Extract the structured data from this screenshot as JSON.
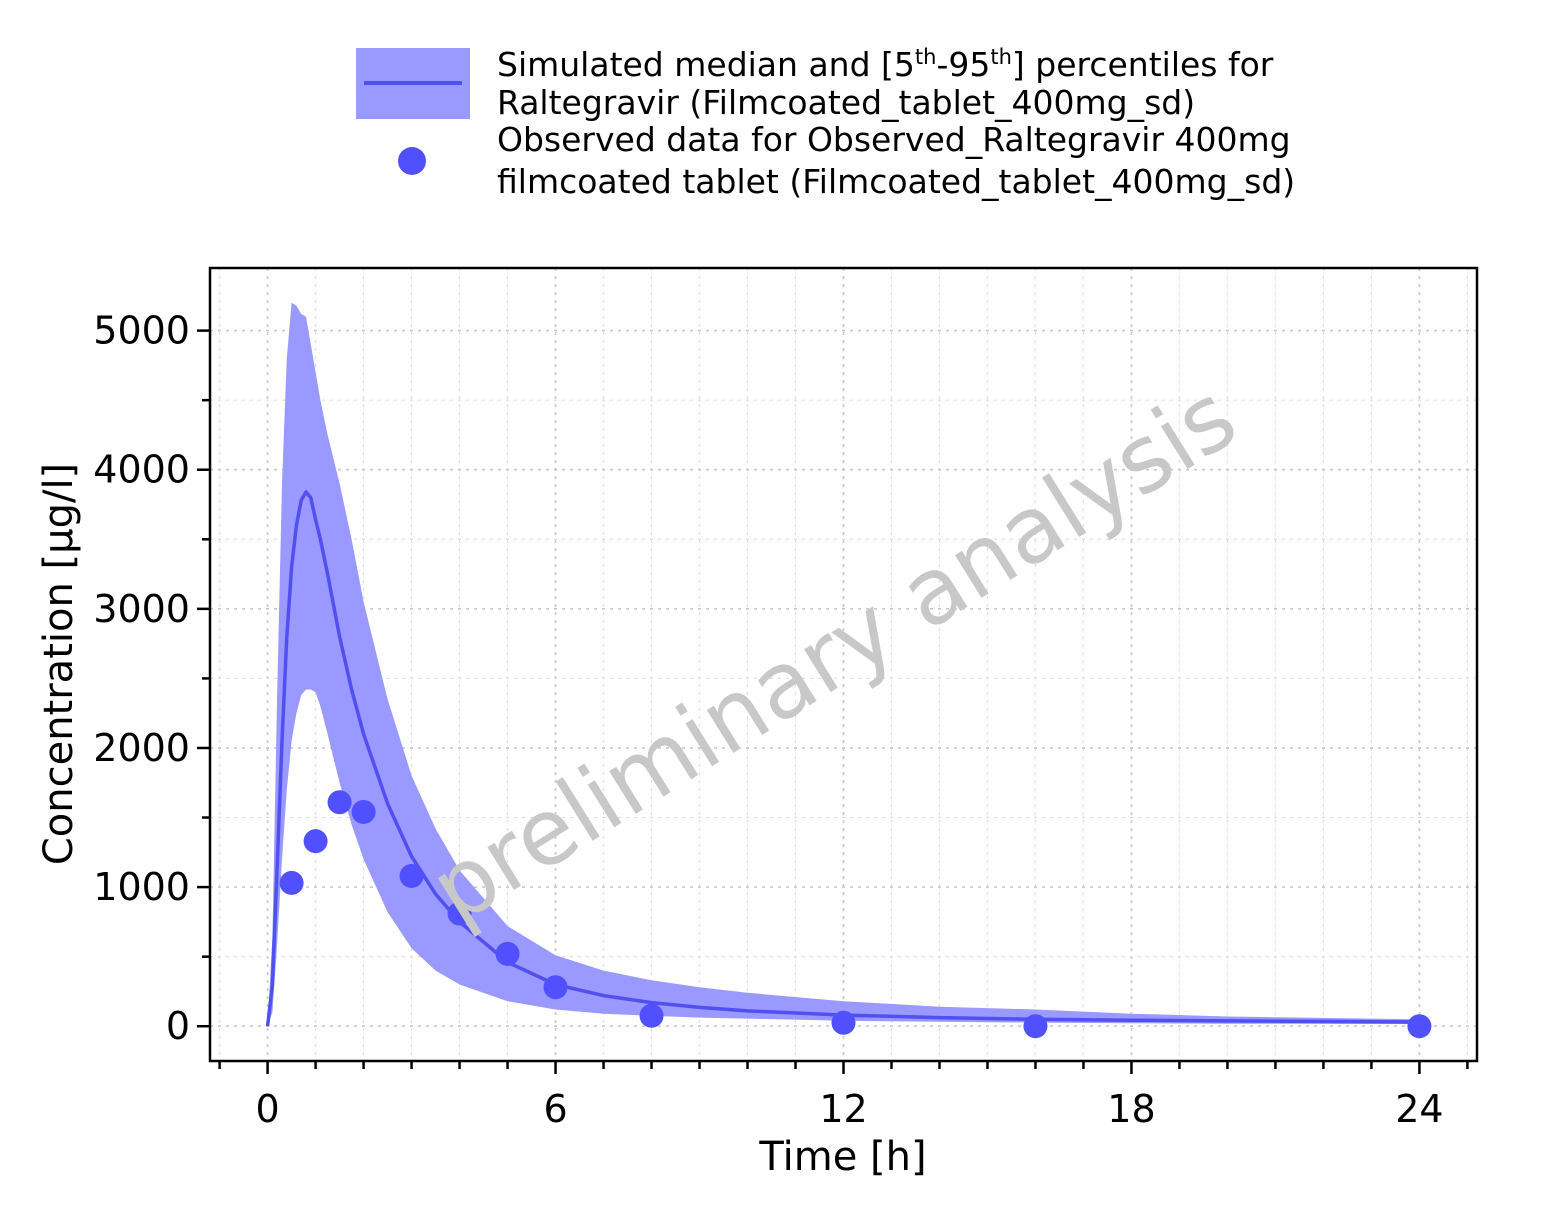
{
  "chart_data": {
    "type": "line",
    "xlabel": "Time [h]",
    "ylabel": "Concentration [µg/l]",
    "xlim": [
      -1.2,
      25.2
    ],
    "ylim": [
      -250,
      5450
    ],
    "x_ticks": [
      0,
      6,
      12,
      18,
      24
    ],
    "y_ticks": [
      0,
      1000,
      2000,
      3000,
      4000,
      5000
    ],
    "x_minor_step": 1,
    "y_minor_step": 500,
    "grid": true,
    "legend_position": "top",
    "watermark": "preliminary analysis",
    "colors": {
      "band": "#9999ff",
      "line": "#5050f0",
      "points": "#5050ff"
    },
    "series": [
      {
        "name_parts": [
          "Simulated median and [5",
          "th",
          "-95",
          "th",
          "] percentiles for",
          "Raltegravir (Filmcoated_tablet_400mg_sd)"
        ],
        "type": "line-band",
        "x": [
          0,
          0.1,
          0.2,
          0.3,
          0.4,
          0.5,
          0.6,
          0.7,
          0.8,
          0.9,
          1.0,
          1.1,
          1.25,
          1.5,
          1.75,
          2.0,
          2.5,
          3.0,
          3.5,
          4.0,
          5.0,
          6.0,
          7.0,
          8.0,
          9.0,
          10.0,
          12.0,
          14.0,
          16.0,
          18.0,
          20.0,
          24.0
        ],
        "median": [
          0,
          300,
          1150,
          2050,
          2800,
          3300,
          3600,
          3780,
          3840,
          3800,
          3640,
          3500,
          3250,
          2800,
          2420,
          2100,
          1600,
          1220,
          950,
          750,
          460,
          300,
          220,
          170,
          135,
          110,
          80,
          62,
          50,
          43,
          38,
          30
        ],
        "p95": [
          0,
          650,
          2400,
          3900,
          4800,
          5200,
          5180,
          5120,
          5100,
          4900,
          4700,
          4500,
          4250,
          3900,
          3500,
          3050,
          2350,
          1800,
          1420,
          1120,
          720,
          510,
          400,
          330,
          280,
          240,
          180,
          140,
          120,
          90,
          70,
          50
        ],
        "p5": [
          0,
          100,
          600,
          1200,
          1700,
          2050,
          2250,
          2380,
          2420,
          2420,
          2400,
          2300,
          2100,
          1750,
          1450,
          1200,
          820,
          560,
          400,
          300,
          180,
          120,
          90,
          75,
          62,
          55,
          40,
          32,
          26,
          22,
          18,
          15
        ]
      },
      {
        "name_parts": [
          "Observed data for Observed_Raltegravir 400mg",
          "filmcoated tablet (Filmcoated_tablet_400mg_sd)"
        ],
        "type": "scatter",
        "x": [
          0.5,
          1.0,
          1.5,
          2.0,
          3.0,
          4.0,
          5.0,
          6.0,
          8.0,
          12.0,
          16.0,
          24.0
        ],
        "y": [
          1030,
          1330,
          1610,
          1540,
          1080,
          810,
          520,
          280,
          75,
          25,
          0,
          0
        ]
      }
    ]
  }
}
